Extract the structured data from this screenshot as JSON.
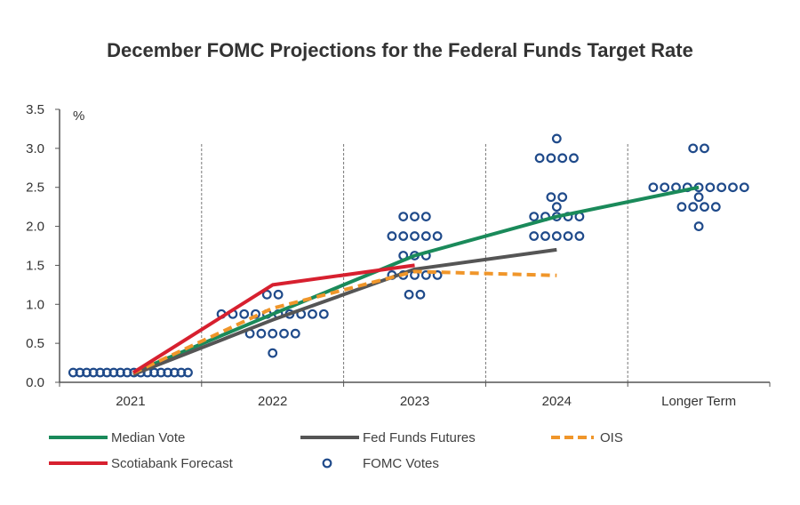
{
  "chart_data": {
    "type": "line",
    "title": "December FOMC Projections for the Federal Funds Target Rate",
    "ylabel": "%",
    "xlabel": "",
    "ylim": [
      0,
      3.5
    ],
    "yticks": [
      "0.0",
      "0.5",
      "1.0",
      "1.5",
      "2.0",
      "2.5",
      "3.0",
      "3.5"
    ],
    "categories": [
      "2021",
      "2022",
      "2023",
      "2024",
      "Longer Term"
    ],
    "grid": "vertical dashed separators between categories",
    "legend_position": "bottom",
    "series": [
      {
        "name": "Median Vote",
        "color": "#1a8a5a",
        "style": "solid",
        "points": [
          [
            0.0,
            0.125
          ],
          [
            1,
            0.875
          ],
          [
            2,
            1.625
          ],
          [
            3,
            2.125
          ],
          [
            4,
            2.5
          ]
        ]
      },
      {
        "name": "Fed Funds Futures",
        "color": "#555555",
        "style": "solid",
        "points": [
          [
            0.0,
            0.1
          ],
          [
            1,
            0.8
          ],
          [
            2,
            1.45
          ],
          [
            3,
            1.7
          ]
        ]
      },
      {
        "name": "OIS",
        "color": "#f0962a",
        "style": "dashed",
        "points": [
          [
            0.0,
            0.12
          ],
          [
            1,
            0.95
          ],
          [
            2,
            1.42
          ],
          [
            3,
            1.37
          ]
        ]
      },
      {
        "name": "Scotiabank Forecast",
        "color": "#d7202f",
        "style": "solid",
        "points": [
          [
            0.0,
            0.125
          ],
          [
            1,
            1.25
          ],
          [
            2,
            1.5
          ]
        ]
      }
    ],
    "fomc_votes": {
      "name": "FOMC Votes",
      "color": "#1f4a8a",
      "groups": [
        {
          "category": "2021",
          "votes": [
            {
              "rate": 0.125,
              "count": 18
            }
          ]
        },
        {
          "category": "2022",
          "votes": [
            {
              "rate": 1.125,
              "count": 2
            },
            {
              "rate": 0.875,
              "count": 10
            },
            {
              "rate": 0.625,
              "count": 5
            },
            {
              "rate": 0.375,
              "count": 1
            }
          ]
        },
        {
          "category": "2023",
          "votes": [
            {
              "rate": 2.125,
              "count": 3
            },
            {
              "rate": 1.875,
              "count": 5
            },
            {
              "rate": 1.625,
              "count": 3
            },
            {
              "rate": 1.375,
              "count": 5
            },
            {
              "rate": 1.125,
              "count": 2
            }
          ]
        },
        {
          "category": "2024",
          "votes": [
            {
              "rate": 3.125,
              "count": 1
            },
            {
              "rate": 2.875,
              "count": 4
            },
            {
              "rate": 2.375,
              "count": 2
            },
            {
              "rate": 2.25,
              "count": 1
            },
            {
              "rate": 2.125,
              "count": 5
            },
            {
              "rate": 1.875,
              "count": 5
            }
          ]
        },
        {
          "category": "Longer Term",
          "votes": [
            {
              "rate": 3.0,
              "count": 2
            },
            {
              "rate": 2.5,
              "count": 9
            },
            {
              "rate": 2.375,
              "count": 1
            },
            {
              "rate": 2.25,
              "count": 4
            },
            {
              "rate": 2.0,
              "count": 1
            }
          ]
        }
      ]
    },
    "legend": [
      "Median Vote",
      "Fed Funds Futures",
      "OIS",
      "Scotiabank Forecast",
      "FOMC Votes"
    ]
  }
}
